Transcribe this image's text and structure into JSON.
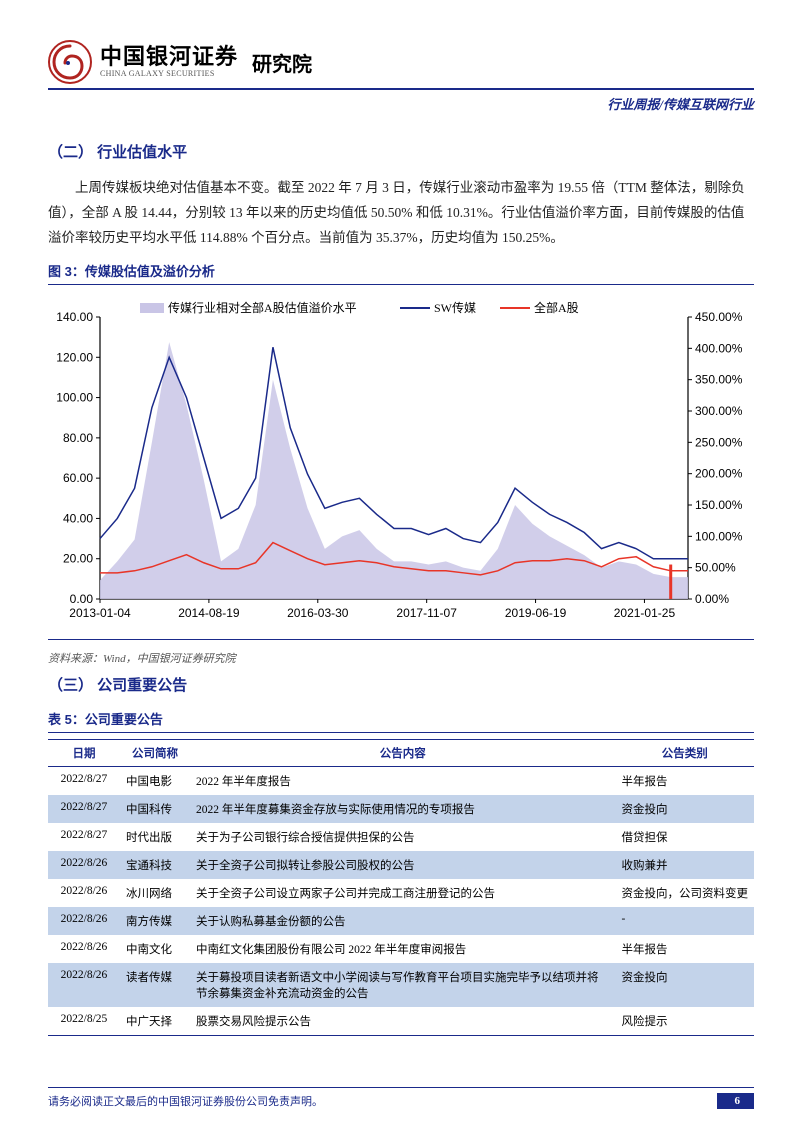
{
  "header": {
    "logo_cn": "中国银河证券",
    "logo_en": "CHINA GALAXY SECURITIES",
    "institute": "研究院",
    "breadcrumb": "行业周报/传媒互联网行业"
  },
  "section2": {
    "title": "（二） 行业估值水平",
    "paragraph": "上周传媒板块绝对估值基本不变。截至 2022 年 7 月 3 日，传媒行业滚动市盈率为 19.55 倍（TTM 整体法，剔除负值），全部 A 股 14.44，分别较 13 年以来的历史均值低 50.50% 和低 10.31%。行业估值溢价率方面，目前传媒股的估值溢价率较历史平均水平低 114.88% 个百分点。当前值为 35.37%，历史均值为 150.25%。"
  },
  "figure3": {
    "title": "图 3：传媒股估值及溢价分析",
    "type": "dual-axis-line-area",
    "legend": {
      "area": "传媒行业相对全部A股估值溢价水平",
      "line1": "SW传媒",
      "line2": "全部A股"
    },
    "colors": {
      "area_fill": "#c9c5e6",
      "line1": "#1a2a8a",
      "line2": "#e83528",
      "axis": "#000000",
      "background": "#ffffff"
    },
    "y_left": {
      "min": 0,
      "max": 140,
      "ticks": [
        0,
        20,
        40,
        60,
        80,
        100,
        120,
        140
      ],
      "labels": [
        "0.00",
        "20.00",
        "40.00",
        "60.00",
        "80.00",
        "100.00",
        "120.00",
        "140.00"
      ]
    },
    "y_right": {
      "min": 0,
      "max": 450,
      "ticks": [
        0,
        50,
        100,
        150,
        200,
        250,
        300,
        350,
        400,
        450
      ],
      "labels": [
        "0.00%",
        "50.00%",
        "100.00%",
        "150.00%",
        "200.00%",
        "250.00%",
        "300.00%",
        "350.00%",
        "400.00%",
        "450.00%"
      ]
    },
    "x_labels": [
      "2013-01-04",
      "2014-08-19",
      "2016-03-30",
      "2017-11-07",
      "2019-06-19",
      "2021-01-25"
    ],
    "series_area_pct": [
      30,
      60,
      95,
      250,
      410,
      310,
      190,
      60,
      80,
      150,
      350,
      240,
      145,
      80,
      100,
      110,
      80,
      60,
      60,
      55,
      60,
      50,
      45,
      80,
      150,
      120,
      100,
      85,
      70,
      50,
      60,
      55,
      40,
      35,
      35
    ],
    "series_line1_pe": [
      30,
      40,
      55,
      95,
      120,
      100,
      70,
      40,
      45,
      60,
      125,
      85,
      62,
      45,
      48,
      50,
      42,
      35,
      35,
      32,
      35,
      30,
      28,
      38,
      55,
      48,
      42,
      38,
      33,
      25,
      28,
      25,
      20,
      20,
      20
    ],
    "series_line2_pe": [
      13,
      13,
      14,
      16,
      19,
      22,
      18,
      15,
      15,
      18,
      28,
      24,
      20,
      17,
      18,
      19,
      18,
      16,
      15,
      14,
      14,
      13,
      12,
      14,
      18,
      19,
      19,
      20,
      19,
      16,
      20,
      21,
      16,
      14,
      14
    ],
    "line_width": 1.5,
    "fontsize_axis": 12,
    "source": "资料来源：Wind，中国银河证券研究院"
  },
  "section3": {
    "title": "（三） 公司重要公告"
  },
  "table5": {
    "title": "表 5：公司重要公告",
    "columns": [
      "日期",
      "公司简称",
      "公告内容",
      "公告类别"
    ],
    "rows": [
      {
        "date": "2022/8/27",
        "company": "中国电影",
        "content": "2022 年半年度报告",
        "category": "半年报告",
        "alt": false
      },
      {
        "date": "2022/8/27",
        "company": "中国科传",
        "content": "2022 年半年度募集资金存放与实际使用情况的专项报告",
        "category": "资金投向",
        "alt": true
      },
      {
        "date": "2022/8/27",
        "company": "时代出版",
        "content": "关于为子公司银行综合授信提供担保的公告",
        "category": "借贷担保",
        "alt": false
      },
      {
        "date": "2022/8/26",
        "company": "宝通科技",
        "content": "关于全资子公司拟转让参股公司股权的公告",
        "category": "收购兼并",
        "alt": true
      },
      {
        "date": "2022/8/26",
        "company": "冰川网络",
        "content": "关于全资子公司设立两家子公司并完成工商注册登记的公告",
        "category": "资金投向，公司资料变更",
        "alt": false
      },
      {
        "date": "2022/8/26",
        "company": "南方传媒",
        "content": "关于认购私募基金份额的公告",
        "category": "-",
        "alt": true
      },
      {
        "date": "2022/8/26",
        "company": "中南文化",
        "content": "中南红文化集团股份有限公司 2022 年半年度审阅报告",
        "category": "半年报告",
        "alt": false
      },
      {
        "date": "2022/8/26",
        "company": "读者传媒",
        "content": "关于募投项目读者新语文中小学阅读与写作教育平台项目实施完毕予以结项并将节余募集资金补充流动资金的公告",
        "category": "资金投向",
        "alt": true
      },
      {
        "date": "2022/8/25",
        "company": "中广天择",
        "content": "股票交易风险提示公告",
        "category": "风险提示",
        "alt": false
      }
    ]
  },
  "footer": {
    "disclaimer": "请务必阅读正文最后的中国银河证券股份公司免责声明。",
    "page": "6"
  }
}
